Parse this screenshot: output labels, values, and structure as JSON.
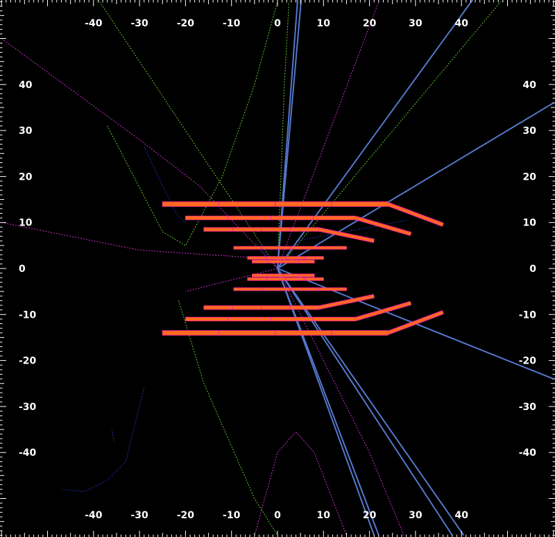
{
  "scale": {
    "x_ticks": [
      "-40",
      "-30",
      "-20",
      "-10",
      "0",
      "10",
      "20",
      "30",
      "40"
    ],
    "y_ticks": [
      "40",
      "30",
      "20",
      "10",
      "0",
      "-10",
      "-20",
      "-30",
      "-40"
    ]
  },
  "colors": {
    "background": "#000000",
    "axis": "#ffffff",
    "detector_fill": "#ff6a1a",
    "detector_edge": "#ff2b8c",
    "track_primary": "#5577cc",
    "track_green": "#66cc33",
    "track_magenta": "#cc33cc",
    "track_blue": "#2233aa"
  },
  "detector": {
    "layers": [
      {
        "x1": -25,
        "x2": 24,
        "y": 14,
        "th": 1.0
      },
      {
        "x1": -20,
        "x2": 17,
        "y": 11,
        "th": 0.8
      },
      {
        "x1": -16,
        "x2": 9,
        "y": 8.5,
        "th": 0.8
      },
      {
        "x1": -9.5,
        "x2": 15,
        "y": 4.5,
        "th": 0.5
      },
      {
        "x1": -6.5,
        "x2": 10,
        "y": 2.3,
        "th": 0.5
      },
      {
        "x1": -5.5,
        "x2": 8,
        "y": 1.5,
        "th": 0.4
      },
      {
        "x1": -5.5,
        "x2": 8,
        "y": -1.5,
        "th": 0.4
      },
      {
        "x1": -6.5,
        "x2": 10,
        "y": -2.3,
        "th": 0.5
      },
      {
        "x1": -9.5,
        "x2": 15,
        "y": -4.5,
        "th": 0.5
      },
      {
        "x1": -16,
        "x2": 9,
        "y": -8.5,
        "th": 0.8
      },
      {
        "x1": -20,
        "x2": 17,
        "y": -11,
        "th": 0.8
      },
      {
        "x1": -25,
        "x2": 24,
        "y": -14,
        "th": 1.0
      }
    ],
    "endcaps": [
      {
        "x1": 24,
        "y1": 14,
        "x2": 36,
        "y2": 9.5
      },
      {
        "x1": 17,
        "y1": 11,
        "x2": 29,
        "y2": 7.5
      },
      {
        "x1": 9,
        "y1": 8.5,
        "x2": 21,
        "y2": 6
      },
      {
        "x1": 24,
        "y1": -14,
        "x2": 36,
        "y2": -9.5
      },
      {
        "x1": 17,
        "y1": -11,
        "x2": 29,
        "y2": -7.5
      },
      {
        "x1": 9,
        "y1": -8.5,
        "x2": 21,
        "y2": -6
      }
    ]
  },
  "tracks": {
    "primary": [
      [
        [
          0,
          0
        ],
        [
          4.5,
          60
        ]
      ],
      [
        [
          0,
          0
        ],
        [
          5.3,
          60
        ]
      ],
      [
        [
          0,
          0
        ],
        [
          42.5,
          58.5
        ]
      ],
      [
        [
          0,
          0
        ],
        [
          60,
          36
        ]
      ],
      [
        [
          0,
          0
        ],
        [
          60,
          -24
        ]
      ],
      [
        [
          0,
          0
        ],
        [
          21,
          -58
        ]
      ],
      [
        [
          0,
          0
        ],
        [
          22,
          -58
        ]
      ],
      [
        [
          0,
          0
        ],
        [
          38,
          -58
        ]
      ],
      [
        [
          0,
          0
        ],
        [
          40.5,
          -58
        ]
      ]
    ],
    "green": [
      [
        [
          -40,
          60
        ],
        [
          -20,
          30
        ],
        [
          0,
          0
        ]
      ],
      [
        [
          0,
          0
        ],
        [
          1.5,
          40
        ],
        [
          2.5,
          58
        ]
      ],
      [
        [
          -37,
          31
        ],
        [
          -25,
          8
        ],
        [
          -20,
          5
        ],
        [
          -12,
          20
        ],
        [
          -5,
          40
        ],
        [
          0,
          58
        ]
      ],
      [
        [
          0,
          0
        ],
        [
          48.5,
          58
        ]
      ],
      [
        [
          -21.5,
          -7
        ],
        [
          -16,
          -25
        ],
        [
          -5,
          -50
        ],
        [
          0,
          -58
        ]
      ]
    ],
    "magenta": [
      [
        [
          -60,
          50
        ],
        [
          -30,
          28
        ],
        [
          -17,
          18
        ],
        [
          0,
          0
        ]
      ],
      [
        [
          -60,
          10
        ],
        [
          -30,
          4
        ],
        [
          0,
          2
        ]
      ],
      [
        [
          0,
          0
        ],
        [
          22,
          58
        ]
      ],
      [
        [
          0,
          0
        ],
        [
          -20,
          -5
        ]
      ],
      [
        [
          0,
          0
        ],
        [
          20,
          -40
        ],
        [
          27.5,
          -58
        ]
      ],
      [
        [
          -5,
          -58
        ],
        [
          0,
          -40
        ],
        [
          4,
          -35.5
        ],
        [
          8,
          -40
        ],
        [
          15,
          -58
        ]
      ]
    ],
    "blue": [
      [
        [
          -29,
          26.5
        ],
        [
          -25,
          18
        ],
        [
          -22,
          12
        ],
        [
          -20,
          10
        ]
      ],
      [
        [
          -29,
          -26
        ],
        [
          -33,
          -42
        ],
        [
          -37,
          -46
        ],
        [
          -42,
          -48.5
        ],
        [
          -47,
          -48
        ]
      ],
      [
        [
          -36,
          -35
        ],
        [
          -35.5,
          -38
        ]
      ],
      [
        [
          4,
          6
        ],
        [
          15,
          8
        ],
        [
          28,
          10.5
        ]
      ],
      [
        [
          0,
          0
        ],
        [
          -5,
          6
        ]
      ]
    ]
  }
}
